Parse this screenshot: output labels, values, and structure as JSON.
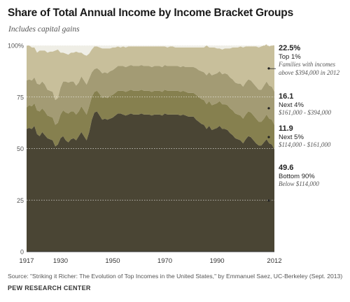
{
  "title": "Share of Total Annual Income by Income Bracket Groups",
  "subtitle": "Includes capital gains",
  "source": "Source: \"Striking it Richer: The Evolution of Top Incomes in the United States,\" by Emmanuel Saez, UC-Berkeley (Sept. 2013)",
  "organization": "PEW RESEARCH CENTER",
  "colors": {
    "background_plot": "#efeee6",
    "top1": "#c8bf9b",
    "next4": "#a39b74",
    "next5": "#86804f",
    "bottom90": "#4a4534",
    "text": "#222222"
  },
  "annotations": {
    "top1": {
      "value": "22.5%",
      "label": "Top 1%",
      "detail": "Families with incomes above $394,000 in 2012"
    },
    "next4": {
      "value": "16.1",
      "label": "Next 4%",
      "detail": "$161,000 - $394,000"
    },
    "next5": {
      "value": "11.9",
      "label": "Next 5%",
      "detail": "$114,000 - $161,000"
    },
    "bottom90": {
      "value": "49.6",
      "label": "Bottom 90%",
      "detail": "Below $114,000"
    }
  },
  "chart_data": {
    "type": "area",
    "stacked": true,
    "xlim": [
      1917,
      2012
    ],
    "ylim": [
      0,
      100
    ],
    "xticks": [
      1917,
      1930,
      1950,
      1970,
      1990,
      2012
    ],
    "yticks": [
      0,
      25,
      50,
      75,
      100
    ],
    "ytick_labels": [
      "0",
      "25",
      "50",
      "75",
      "100%"
    ],
    "grid": "horizontal-dotted",
    "x": [
      1917,
      1918,
      1919,
      1920,
      1921,
      1922,
      1923,
      1924,
      1925,
      1926,
      1927,
      1928,
      1929,
      1930,
      1931,
      1932,
      1933,
      1934,
      1935,
      1936,
      1937,
      1938,
      1939,
      1940,
      1941,
      1942,
      1943,
      1944,
      1945,
      1946,
      1947,
      1948,
      1949,
      1950,
      1951,
      1952,
      1953,
      1954,
      1955,
      1956,
      1957,
      1958,
      1959,
      1960,
      1961,
      1962,
      1963,
      1964,
      1965,
      1966,
      1967,
      1968,
      1969,
      1970,
      1971,
      1972,
      1973,
      1974,
      1975,
      1976,
      1977,
      1978,
      1979,
      1980,
      1981,
      1982,
      1983,
      1984,
      1985,
      1986,
      1987,
      1988,
      1989,
      1990,
      1991,
      1992,
      1993,
      1994,
      1995,
      1996,
      1997,
      1998,
      1999,
      2000,
      2001,
      2002,
      2003,
      2004,
      2005,
      2006,
      2007,
      2008,
      2009,
      2010,
      2011,
      2012
    ],
    "series": [
      {
        "name": "Bottom 90%",
        "values": [
          59.5,
          60,
          59.5,
          61,
          57,
          56,
          58,
          56.5,
          55,
          54.5,
          54,
          51,
          52,
          55,
          56,
          54,
          53,
          54.5,
          55,
          54,
          56,
          58,
          56,
          54,
          58,
          64,
          67.5,
          68,
          66,
          64,
          64.5,
          64,
          64.5,
          65,
          66,
          67,
          67,
          66.5,
          66,
          66.5,
          67,
          66.5,
          66.5,
          66.5,
          67,
          66.5,
          66.5,
          66.5,
          66,
          66.5,
          66.5,
          66.5,
          66,
          67,
          66.5,
          66.5,
          66.5,
          66.5,
          66.5,
          66,
          66.5,
          66,
          65.5,
          65.5,
          65.5,
          64,
          63,
          62,
          61.5,
          59.5,
          61,
          59,
          59.5,
          60,
          61,
          59.5,
          59.5,
          59,
          57.5,
          56.5,
          55,
          54.5,
          54,
          52.5,
          54.5,
          56,
          55.5,
          54,
          52.5,
          51.5,
          51.5,
          53,
          54.5,
          52.5,
          52,
          49.6
        ]
      },
      {
        "name": "Next 5%",
        "values": [
          10.5,
          11,
          11,
          11,
          11.5,
          12,
          11.5,
          11.5,
          11,
          11,
          11,
          10.5,
          10.5,
          11.5,
          12.5,
          13.5,
          14,
          13.5,
          13,
          12.5,
          12,
          12.5,
          12.5,
          12.5,
          12.5,
          11,
          10,
          10,
          10.5,
          10.5,
          10.5,
          10.5,
          11,
          11,
          11,
          11,
          11,
          11.5,
          11.5,
          11.5,
          11.5,
          11.5,
          11.5,
          11.5,
          11.5,
          11.5,
          11.5,
          11.5,
          11.5,
          11.5,
          11.5,
          11.5,
          11.5,
          11.5,
          11.5,
          11.5,
          11.5,
          11.5,
          11.5,
          11.5,
          11.5,
          11.5,
          11.5,
          11.5,
          11.5,
          12,
          12,
          12,
          12,
          12,
          12,
          12,
          12,
          12,
          12,
          12,
          12,
          12,
          12,
          12,
          12,
          12,
          12,
          12,
          12,
          12,
          12,
          12,
          12,
          11.5,
          11.5,
          11.5,
          12,
          12,
          12,
          11.9
        ]
      },
      {
        "name": "Next 4%",
        "values": [
          13,
          12.5,
          12.5,
          12.5,
          13,
          13,
          13,
          13,
          12.5,
          12.5,
          12.5,
          12,
          12,
          13,
          14,
          15,
          15,
          14.5,
          14.5,
          14,
          14,
          14.5,
          14.5,
          14.5,
          13.5,
          12,
          11,
          11,
          11.5,
          12,
          12,
          12,
          12,
          12,
          12,
          12,
          12,
          12,
          12,
          12,
          12,
          12,
          12,
          12,
          12,
          12,
          12,
          12,
          12,
          12,
          12,
          12,
          12,
          12,
          12,
          12,
          12,
          12,
          12,
          12,
          12,
          12,
          12.5,
          12.5,
          12.5,
          13,
          13,
          13.5,
          13.5,
          14,
          14,
          14.5,
          14.5,
          14.5,
          14.5,
          14.5,
          15,
          15,
          15,
          15,
          15,
          15,
          15.5,
          15.5,
          15.5,
          15.5,
          15.5,
          15.5,
          15.5,
          15.5,
          15.5,
          16,
          16,
          16,
          16,
          16.1
        ]
      },
      {
        "name": "Top 1%",
        "values": [
          17,
          16.5,
          16,
          14.5,
          15,
          16.5,
          15,
          16.5,
          18,
          19,
          19.5,
          24,
          23.5,
          17,
          14,
          13.5,
          13.5,
          14,
          14,
          16.5,
          14.5,
          11.5,
          12.5,
          14,
          12,
          11,
          11,
          10.5,
          11,
          12,
          11.5,
          12,
          11,
          11,
          10,
          9.5,
          9,
          9.5,
          9.5,
          9.5,
          9,
          9.5,
          9.5,
          9.5,
          9,
          9.5,
          9.5,
          9.5,
          10,
          9.5,
          9.5,
          9.5,
          10,
          9,
          9,
          9.5,
          9.5,
          9,
          9,
          9.5,
          9,
          9.5,
          9.5,
          9.5,
          9.5,
          10,
          11,
          11.5,
          12,
          14.5,
          12,
          13.5,
          13,
          12,
          11,
          12,
          12,
          12.5,
          14,
          15.5,
          17,
          17.5,
          18,
          19,
          17.5,
          16,
          16.5,
          18,
          19.5,
          20.5,
          21,
          19.5,
          18,
          19,
          20,
          22.5
        ]
      }
    ]
  }
}
